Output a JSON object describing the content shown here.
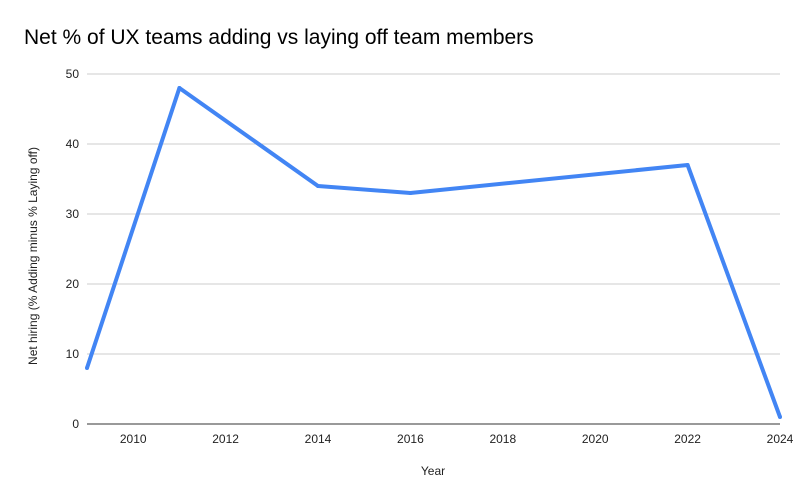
{
  "chart_data": {
    "type": "line",
    "title": "Net % of UX teams adding vs laying off team members",
    "xlabel": "Year",
    "ylabel": "Net hiring (% Adding minus % Laying off)",
    "xlim": [
      2009,
      2024
    ],
    "ylim": [
      0,
      50
    ],
    "x_ticks": [
      2010,
      2012,
      2014,
      2016,
      2018,
      2020,
      2022,
      2024
    ],
    "y_ticks": [
      0,
      10,
      20,
      30,
      40,
      50
    ],
    "grid": true,
    "legend": "none",
    "series": [
      {
        "color": "#4285f4",
        "points": [
          {
            "x": 2009,
            "y": 8
          },
          {
            "x": 2011,
            "y": 48
          },
          {
            "x": 2014,
            "y": 34
          },
          {
            "x": 2016,
            "y": 33
          },
          {
            "x": 2022,
            "y": 37
          },
          {
            "x": 2024,
            "y": 1
          }
        ]
      }
    ]
  }
}
